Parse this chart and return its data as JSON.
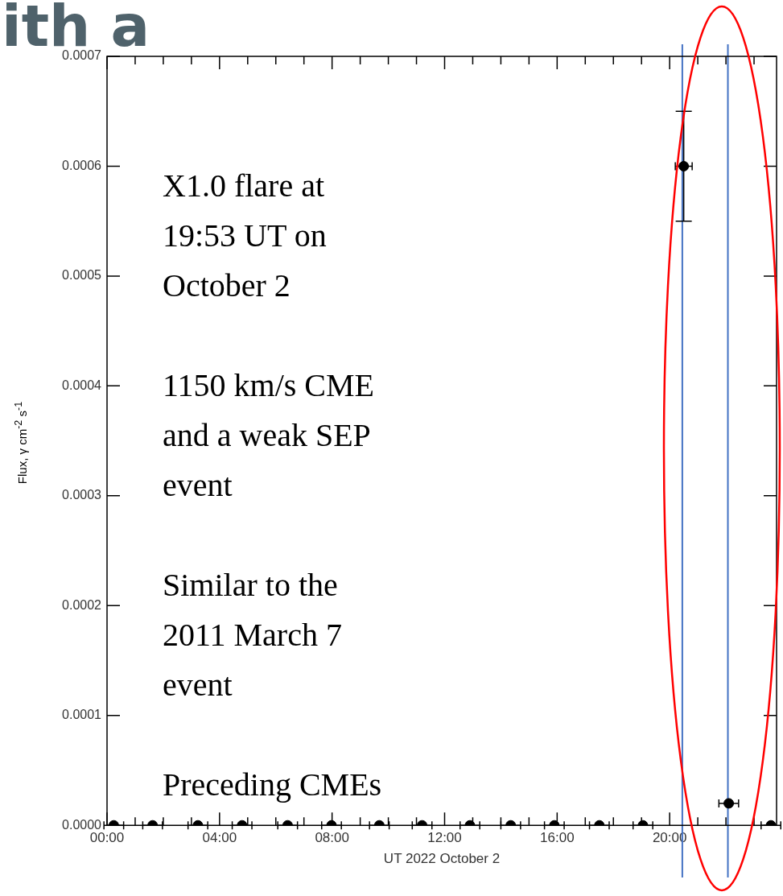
{
  "chart_data": {
    "type": "scatter",
    "title": "ith a",
    "xlabel": "UT 2022 October 2",
    "ylabel": "Flux, γ cm$^{-2}$ s$^{-1}$",
    "x": [
      0.24,
      1.62,
      3.23,
      4.8,
      6.42,
      7.98,
      9.68,
      11.2,
      12.9,
      14.35,
      15.9,
      17.5,
      19.05,
      20.5,
      22.1,
      23.6
    ],
    "values": [
      0,
      0,
      0,
      0,
      0,
      0,
      0,
      0,
      0,
      0,
      0,
      0,
      0,
      0.0006,
      2e-05,
      0
    ],
    "errors": [
      null,
      null,
      null,
      null,
      null,
      null,
      null,
      null,
      null,
      null,
      null,
      null,
      null,
      [
        0.00055,
        0.00065
      ],
      null,
      null
    ],
    "xerrors": [
      0.35,
      0.35,
      0.35,
      0.35,
      0.35,
      0.35,
      0.35,
      0.35,
      0.35,
      0.35,
      0.35,
      0.35,
      0.35,
      0.3,
      0.35,
      0.35
    ],
    "color": "#000000",
    "marker": "circle",
    "grid": false,
    "legend": false,
    "xlim": [
      0,
      23.8
    ],
    "xticks": [
      {
        "value": 0,
        "label": "00:00"
      },
      {
        "value": 1,
        "label": null
      },
      {
        "value": 2,
        "label": null
      },
      {
        "value": 3,
        "label": null
      },
      {
        "value": 4,
        "label": "04:00"
      },
      {
        "value": 5,
        "label": null
      },
      {
        "value": 6,
        "label": null
      },
      {
        "value": 7,
        "label": null
      },
      {
        "value": 8,
        "label": "08:00"
      },
      {
        "value": 9,
        "label": null
      },
      {
        "value": 10,
        "label": null
      },
      {
        "value": 11,
        "label": null
      },
      {
        "value": 12,
        "label": "12:00"
      },
      {
        "value": 13,
        "label": null
      },
      {
        "value": 14,
        "label": null
      },
      {
        "value": 15,
        "label": null
      },
      {
        "value": 16,
        "label": "16:00"
      },
      {
        "value": 17,
        "label": null
      },
      {
        "value": 18,
        "label": null
      },
      {
        "value": 19,
        "label": null
      },
      {
        "value": 20,
        "label": "20:00"
      },
      {
        "value": 21,
        "label": null
      },
      {
        "value": 22,
        "label": null
      },
      {
        "value": 23,
        "label": null
      }
    ],
    "ylim": [
      0,
      0.0007
    ],
    "yticks": [
      {
        "value": 0,
        "label": "0.0000"
      },
      {
        "value": 0.0001,
        "label": "0.0001"
      },
      {
        "value": 0.0002,
        "label": "0.0002"
      },
      {
        "value": 0.0003,
        "label": "0.0003"
      },
      {
        "value": 0.0004,
        "label": "0.0004"
      },
      {
        "value": 0.0005,
        "label": "0.0005"
      },
      {
        "value": 0.0006,
        "label": "0.0006"
      },
      {
        "value": 0.0007,
        "label": "0.0007"
      }
    ],
    "ref_lines": [
      {
        "axis": "x",
        "value": 20.45,
        "color": "#4472c4"
      },
      {
        "axis": "x",
        "value": 22.07,
        "color": "#4472c4"
      }
    ],
    "annotations": [
      "X1.0 flare at\n19:53 UT on\nOctober 2",
      "1150 km/s CME\nand a weak SEP\nevent",
      "Similar to the\n2011 March 7\nevent",
      "Preceding CMEs"
    ]
  }
}
